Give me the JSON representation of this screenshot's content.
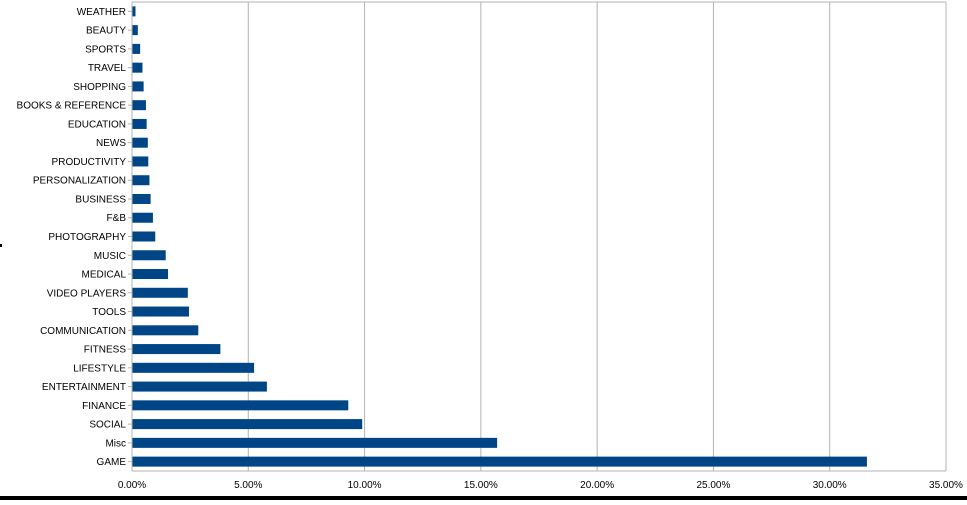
{
  "chart_data": {
    "type": "bar",
    "orientation": "horizontal",
    "categories": [
      "GAME",
      "Misc",
      "SOCIAL",
      "FINANCE",
      "ENTERTAINMENT",
      "LIFESTYLE",
      "FITNESS",
      "COMMUNICATION",
      "TOOLS",
      "VIDEO PLAYERS",
      "MEDICAL",
      "MUSIC",
      "PHOTOGRAPHY",
      "F&B",
      "BUSINESS",
      "PERSONALIZATION",
      "PRODUCTIVITY",
      "NEWS",
      "EDUCATION",
      "BOOKS & REFERENCE",
      "SHOPPING",
      "TRAVEL",
      "SPORTS",
      "BEAUTY",
      "WEATHER"
    ],
    "values": [
      31.6,
      15.7,
      9.9,
      9.3,
      5.8,
      5.25,
      3.8,
      2.85,
      2.45,
      2.4,
      1.55,
      1.45,
      1.0,
      0.9,
      0.8,
      0.75,
      0.7,
      0.68,
      0.63,
      0.6,
      0.5,
      0.45,
      0.35,
      0.25,
      0.15
    ],
    "xlim": [
      0,
      35
    ],
    "xticks": [
      "0.00%",
      "5.00%",
      "10.00%",
      "15.00%",
      "20.00%",
      "25.00%",
      "30.00%",
      "35.00%"
    ],
    "tick_step": 5,
    "grid": true,
    "bar_color": "#004586",
    "grid_color": "#b3b3b3",
    "title": "",
    "xlabel": "",
    "ylabel": ""
  }
}
